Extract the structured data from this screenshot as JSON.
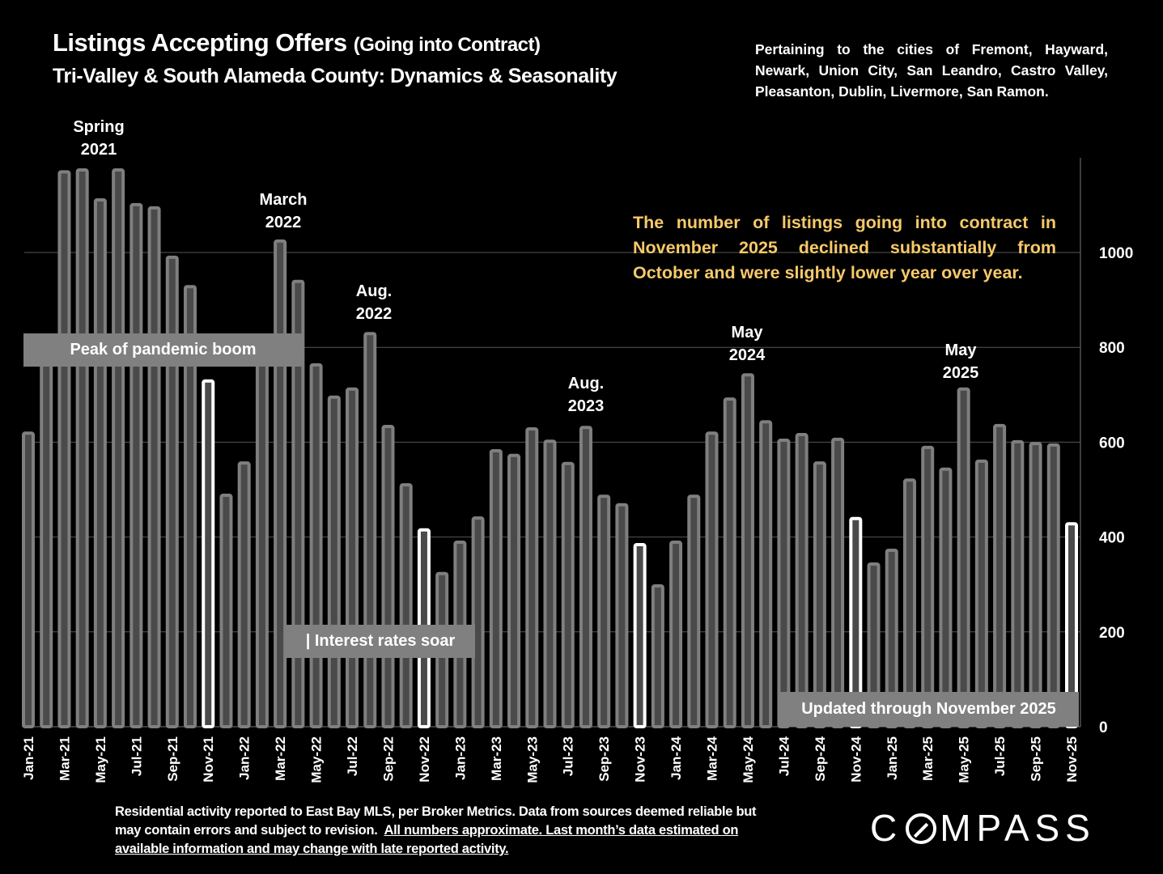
{
  "header": {
    "title_main": "Listings Accepting Offers",
    "title_paren": "(Going into Contract)",
    "subtitle": "Tri-Valley & South Alameda County: Dynamics & Seasonality",
    "cities_note": "Pertaining to the cities of Fremont, Hayward, Newark, Union City, San Leandro, Castro Valley, Pleasanton, Dublin, Livermore, San Ramon."
  },
  "commentary": "The number of listings going into contract in November 2025 declined substantially from October and were slightly lower year over year.",
  "annotations": {
    "spring_2021": [
      "Spring",
      "2021"
    ],
    "march_2022": [
      "March",
      "2022"
    ],
    "aug_2022": [
      "Aug.",
      "2022"
    ],
    "aug_2023": [
      "Aug.",
      "2023"
    ],
    "may_2024": [
      "May",
      "2024"
    ],
    "may_2025": [
      "May",
      "2025"
    ]
  },
  "boxes": {
    "pandemic": "Peak of pandemic boom",
    "rates": "| Interest rates soar",
    "updated": "Updated through November 2025"
  },
  "footer": {
    "plain": "Residential activity reported to East Bay MLS, per Broker Metrics. Data from sources deemed reliable but may contain errors and subject to revision.",
    "underlined": "All numbers approximate. Last month’s data estimated on available information and may change with late reported activity."
  },
  "logo": {
    "pre": "C",
    "post": "MPASS"
  },
  "colors": {
    "bar": "#7f7f7f",
    "bar_inner": "#4a4a4a",
    "highlight": "#ffffff",
    "commentary": "#f7c96a",
    "grid": "#555555"
  },
  "chart_data": {
    "type": "bar",
    "title": "Listings Accepting Offers (Going into Contract)",
    "xlabel": "",
    "ylabel": "",
    "ylim": [
      0,
      1200
    ],
    "y_ticks": [
      0,
      200,
      400,
      600,
      800,
      1000
    ],
    "y_axis_side": "right",
    "grid": true,
    "highlighted_months": [
      "Nov-21",
      "Nov-22",
      "Nov-23",
      "Nov-24",
      "Nov-25"
    ],
    "categories": [
      "Jan-21",
      "Feb-21",
      "Mar-21",
      "Apr-21",
      "May-21",
      "Jun-21",
      "Jul-21",
      "Aug-21",
      "Sep-21",
      "Oct-21",
      "Nov-21",
      "Dec-21",
      "Jan-22",
      "Feb-22",
      "Mar-22",
      "Apr-22",
      "May-22",
      "Jun-22",
      "Jul-22",
      "Aug-22",
      "Sep-22",
      "Oct-22",
      "Nov-22",
      "Dec-22",
      "Jan-23",
      "Feb-23",
      "Mar-23",
      "Apr-23",
      "May-23",
      "Jun-23",
      "Jul-23",
      "Aug-23",
      "Sep-23",
      "Oct-23",
      "Nov-23",
      "Dec-23",
      "Jan-24",
      "Feb-24",
      "Mar-24",
      "Apr-24",
      "May-24",
      "Jun-24",
      "Jul-24",
      "Aug-24",
      "Sep-24",
      "Oct-24",
      "Nov-24",
      "Dec-24",
      "Jan-25",
      "Feb-25",
      "Mar-25",
      "Apr-25",
      "May-25",
      "Jun-25",
      "Jul-25",
      "Aug-25",
      "Sep-25",
      "Oct-25",
      "Nov-25"
    ],
    "values": [
      619,
      790,
      1170,
      1174,
      1111,
      1174,
      1101,
      1094,
      990,
      928,
      729,
      488,
      556,
      800,
      1024,
      939,
      763,
      695,
      712,
      829,
      633,
      510,
      415,
      323,
      389,
      440,
      582,
      572,
      628,
      602,
      555,
      631,
      486,
      468,
      384,
      297,
      389,
      486,
      619,
      691,
      742,
      643,
      604,
      616,
      556,
      606,
      439,
      343,
      372,
      520,
      589,
      543,
      712,
      560,
      635,
      601,
      597,
      594,
      428
    ],
    "tick_labels_shown": [
      "Jan-21",
      "Mar-21",
      "May-21",
      "Jul-21",
      "Sep-21",
      "Nov-21",
      "Jan-22",
      "Mar-22",
      "May-22",
      "Jul-22",
      "Sep-22",
      "Nov-22",
      "Jan-23",
      "Mar-23",
      "May-23",
      "Jul-23",
      "Sep-23",
      "Nov-23",
      "Jan-24",
      "Mar-24",
      "May-24",
      "Jul-24",
      "Sep-24",
      "Nov-24",
      "Jan-25",
      "Mar-25",
      "May-25",
      "Jul-25",
      "Sep-25",
      "Nov-25"
    ]
  }
}
